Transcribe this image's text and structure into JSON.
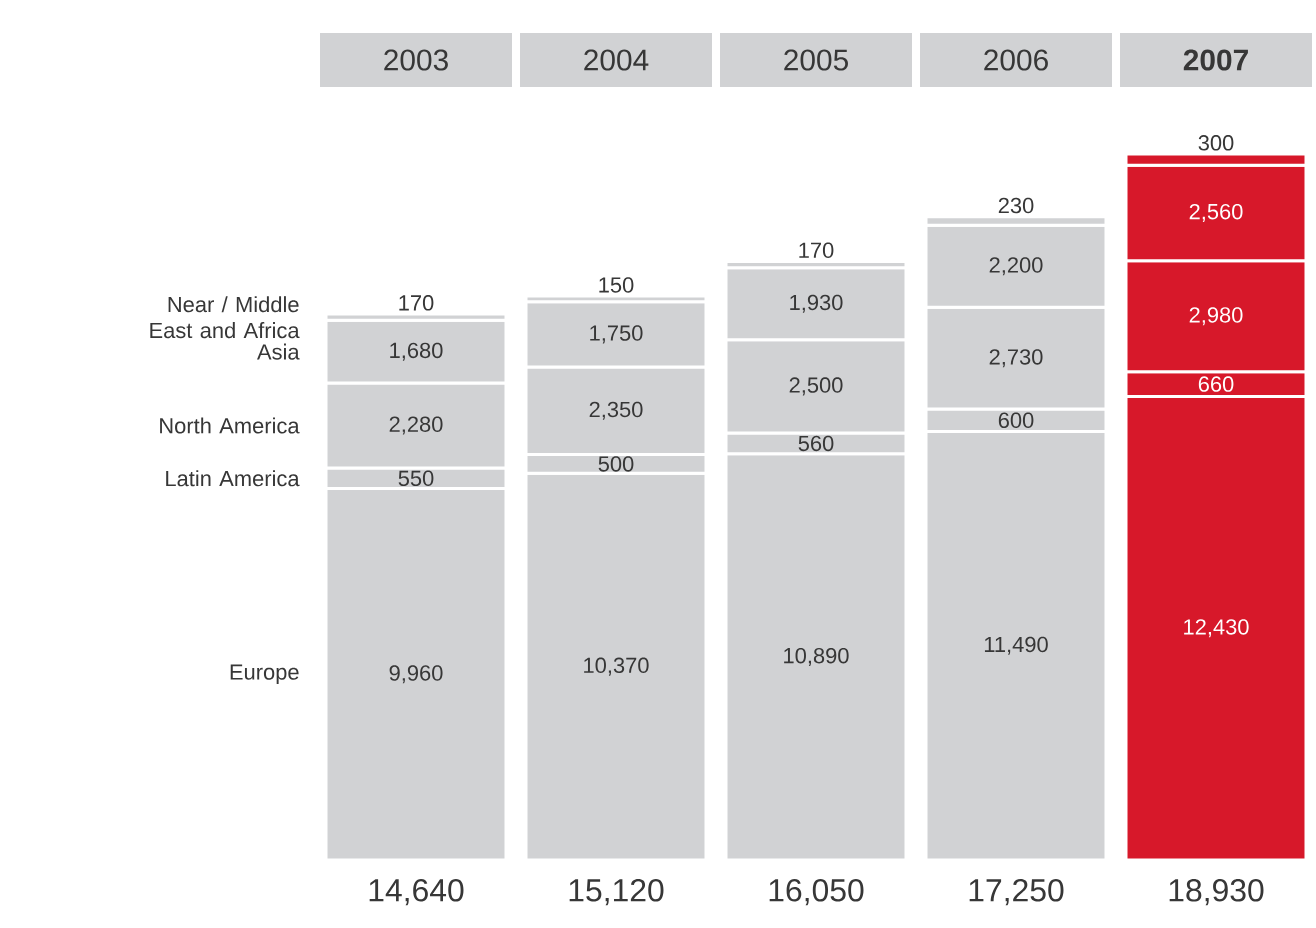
{
  "chart_data": {
    "type": "bar",
    "stacked": true,
    "legend": false,
    "categories": [
      "2003",
      "2004",
      "2005",
      "2006",
      "**2007**"
    ],
    "series": [
      {
        "name": "Europe",
        "colors": [
          "#d1d2d4",
          "#d1d2d4",
          "#d1d2d4",
          "#d1d2d4",
          "#d7182a"
        ],
        "values": [
          9960,
          10370,
          10890,
          11490,
          12430
        ],
        "value_labels": [
          "9,960",
          "10,370",
          "10,890",
          "11,490",
          "12,430"
        ]
      },
      {
        "name": "Latin America",
        "colors": [
          "#d1d2d4",
          "#d1d2d4",
          "#d1d2d4",
          "#d1d2d4",
          "#d7182a"
        ],
        "values": [
          550,
          500,
          560,
          600,
          660
        ],
        "value_labels": [
          "550",
          "500",
          "560",
          "600",
          "660"
        ]
      },
      {
        "name": "North America",
        "colors": [
          "#d1d2d4",
          "#d1d2d4",
          "#d1d2d4",
          "#d1d2d4",
          "#d7182a"
        ],
        "values": [
          2280,
          2350,
          2500,
          2730,
          2980
        ],
        "value_labels": [
          "2,280",
          "2,350",
          "2,500",
          "2,730",
          "2,980"
        ]
      },
      {
        "name": "Asia",
        "colors": [
          "#d1d2d4",
          "#d1d2d4",
          "#d1d2d4",
          "#d1d2d4",
          "#d7182a"
        ],
        "values": [
          1680,
          1750,
          1930,
          2200,
          2560
        ],
        "value_labels": [
          "1,680",
          "1,750",
          "1,930",
          "2,200",
          "2,560"
        ]
      },
      {
        "name": "Near / Middle East and Africa",
        "colors": [
          "#d1d2d4",
          "#d1d2d4",
          "#d1d2d4",
          "#d1d2d4",
          "#d7182a"
        ],
        "values": [
          170,
          150,
          170,
          230,
          300
        ],
        "value_labels": [
          "170",
          "150",
          "170",
          "230",
          "300"
        ]
      }
    ],
    "totals": [
      "14,640",
      "15,120",
      "16,050",
      "17,250",
      "18,930"
    ]
  }
}
